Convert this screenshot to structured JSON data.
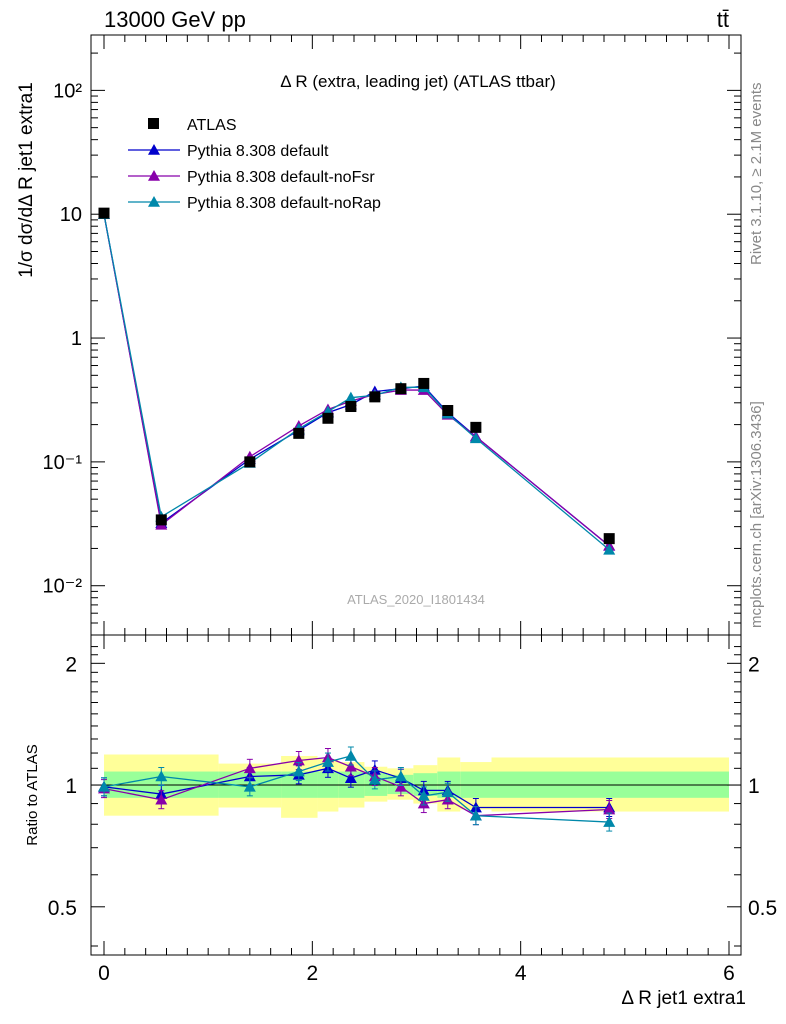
{
  "header": {
    "energy": "13000 GeV pp",
    "process": "tt̄"
  },
  "side": {
    "rivet": "Rivet 3.1.10, ≥ 2.1M events",
    "mcplots": "mcplots.cern.ch [arXiv:1306.3436]"
  },
  "chart_data": [
    {
      "type": "scatter",
      "title": "Δ R (extra, leading jet) (ATLAS ttbar)",
      "watermark": "ATLAS_2020_I1801434",
      "ylabel": "1/σ dσ/dΔ R jet1 extra1",
      "yscale": "log",
      "xlim": [
        -0.15,
        6.0
      ],
      "ylim": [
        0.004,
        280
      ],
      "y_ticklabels": [
        "10⁻²",
        "10⁻¹",
        "1",
        "10",
        "10²"
      ],
      "legend_position": "top-left",
      "x": [
        0.0,
        0.55,
        1.4,
        1.87,
        2.15,
        2.37,
        2.6,
        2.85,
        3.07,
        3.3,
        3.57,
        4.85
      ],
      "series": [
        {
          "name": "ATLAS",
          "color": "#000000",
          "marker": "square",
          "values": [
            10.2,
            0.034,
            0.1,
            0.17,
            0.225,
            0.28,
            0.335,
            0.39,
            0.43,
            0.26,
            0.19,
            0.024
          ]
        },
        {
          "name": "Pythia 8.308 default",
          "color": "#0000cc",
          "marker": "triangle",
          "values": [
            10.0,
            0.032,
            0.105,
            0.18,
            0.25,
            0.29,
            0.37,
            0.39,
            0.41,
            0.25,
            0.16,
            0.021
          ]
        },
        {
          "name": "Pythia 8.308 default-noFsr",
          "color": "#8800aa",
          "marker": "triangle",
          "values": [
            10.0,
            0.031,
            0.11,
            0.195,
            0.265,
            0.31,
            0.35,
            0.38,
            0.38,
            0.24,
            0.16,
            0.021
          ]
        },
        {
          "name": "Pythia 8.308 default-noRap",
          "color": "#0088aa",
          "marker": "triangle",
          "values": [
            10.0,
            0.036,
            0.098,
            0.185,
            0.255,
            0.33,
            0.345,
            0.4,
            0.4,
            0.245,
            0.155,
            0.0195
          ]
        }
      ]
    },
    {
      "type": "scatter",
      "ylabel": "Ratio to ATLAS",
      "xlabel": "Δ R jet1 extra1",
      "xlim": [
        -0.15,
        6.0
      ],
      "ylim": [
        0.38,
        2.35
      ],
      "x_ticklabels": [
        "0",
        "2",
        "4",
        "6"
      ],
      "y_ticklabels": [
        "0.5",
        "1",
        "2"
      ],
      "bands": {
        "edges": [
          0.0,
          1.1,
          1.7,
          2.05,
          2.25,
          2.5,
          2.72,
          2.97,
          3.2,
          3.42,
          3.72,
          6.0
        ],
        "stat": [
          [
            0.93,
            1.08
          ],
          [
            0.93,
            1.08
          ],
          [
            0.93,
            1.08
          ],
          [
            0.93,
            1.08
          ],
          [
            0.93,
            1.08
          ],
          [
            0.94,
            1.07
          ],
          [
            0.95,
            1.06
          ],
          [
            0.94,
            1.07
          ],
          [
            0.93,
            1.08
          ],
          [
            0.93,
            1.08
          ],
          [
            0.93,
            1.08
          ]
        ],
        "total": [
          [
            0.84,
            1.19
          ],
          [
            0.88,
            1.13
          ],
          [
            0.83,
            1.18
          ],
          [
            0.86,
            1.16
          ],
          [
            0.88,
            1.14
          ],
          [
            0.91,
            1.11
          ],
          [
            0.92,
            1.1
          ],
          [
            0.9,
            1.12
          ],
          [
            0.86,
            1.17
          ],
          [
            0.87,
            1.14
          ],
          [
            0.86,
            1.17
          ]
        ]
      },
      "x": [
        0.0,
        0.55,
        1.4,
        1.87,
        2.15,
        2.37,
        2.6,
        2.85,
        3.07,
        3.3,
        3.57,
        4.85
      ],
      "series": [
        {
          "name": "Pythia 8.308 default",
          "color": "#0000cc",
          "values": [
            0.99,
            0.95,
            1.05,
            1.06,
            1.1,
            1.04,
            1.09,
            1.04,
            0.97,
            0.97,
            0.88,
            0.88
          ]
        },
        {
          "name": "Pythia 8.308 default-noFsr",
          "color": "#8800aa",
          "values": [
            0.98,
            0.92,
            1.1,
            1.15,
            1.17,
            1.11,
            1.05,
            0.99,
            0.9,
            0.92,
            0.84,
            0.87
          ]
        },
        {
          "name": "Pythia 8.308 default-noRap",
          "color": "#0088aa",
          "values": [
            0.99,
            1.05,
            0.99,
            1.08,
            1.14,
            1.18,
            1.03,
            1.05,
            0.94,
            0.96,
            0.84,
            0.81
          ]
        }
      ]
    }
  ]
}
